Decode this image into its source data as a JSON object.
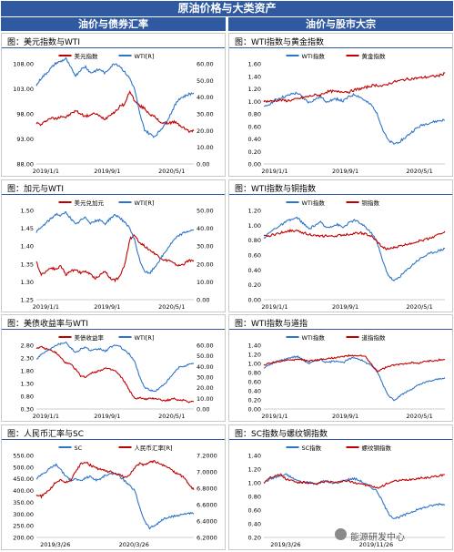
{
  "header": {
    "title": "原油价格与大类资产"
  },
  "sections": {
    "left": "油价与债券汇率",
    "right": "油价与股市大宗"
  },
  "colors": {
    "header_bg": "#2f5aa1",
    "series_red": "#c00000",
    "series_blue": "#2e75c8"
  },
  "watermark": "能源研发中心",
  "panels": [
    {
      "title": "图：美元指数与WTI"
    },
    {
      "title": "图：WTI指数与黄金指数"
    },
    {
      "title": "图：加元与WTI"
    },
    {
      "title": "图：WTI指数与铜指数"
    },
    {
      "title": "图：美债收益率与WTI"
    },
    {
      "title": "图：WTI指数与道指"
    },
    {
      "title": "图：人民币汇率与SC"
    },
    {
      "title": "图：SC指数与螺纹钢指数"
    }
  ],
  "chart_data": [
    {
      "type": "line",
      "title": "图：美元指数与WTI",
      "x_ticks": [
        "2019/1/1",
        "2019/9/1",
        "2020/5/1"
      ],
      "y_left": {
        "ticks": [
          "108.00",
          "103.00",
          "98.00",
          "93.00",
          "88.00"
        ],
        "range": [
          88,
          108
        ]
      },
      "y_right": {
        "ticks": [
          "60.00",
          "50.00",
          "40.00",
          "30.00",
          "20.00",
          "10.00",
          "0.00"
        ],
        "range": [
          0,
          60
        ]
      },
      "series": [
        {
          "name": "美元指数",
          "axis": "left",
          "color": "#c00000",
          "values": [
            96.2,
            95.8,
            96.7,
            97.2,
            97.0,
            97.6,
            97.3,
            98.0,
            98.6,
            98.0,
            97.5,
            97.8,
            98.1,
            97.4,
            97.0,
            97.9,
            98.4,
            99.5,
            100.0,
            102.6,
            100.5,
            99.6,
            99.1,
            98.0,
            97.4,
            96.5,
            96.1,
            96.2,
            96.4,
            95.8,
            95.2,
            94.5,
            94.6
          ]
        },
        {
          "name": "WTI[R]",
          "axis": "right",
          "color": "#2e75c8",
          "values": [
            47.0,
            51.5,
            54.2,
            57.5,
            60.4,
            61.5,
            63.0,
            57.5,
            53.0,
            56.5,
            58.4,
            54.5,
            55.8,
            56.6,
            54.2,
            58.0,
            60.3,
            58.6,
            54.8,
            51.2,
            44.5,
            30.1,
            20.5,
            18.0,
            16.5,
            19.5,
            23.5,
            28.3,
            34.2,
            39.1,
            40.4,
            41.8,
            42.5
          ]
        }
      ]
    },
    {
      "type": "line",
      "title": "图：WTI指数与黄金指数",
      "x_ticks": [
        "2019/1/1",
        "2019/9/1",
        "2020/5/1"
      ],
      "y_left": {
        "ticks": [
          "1.60",
          "1.40",
          "1.20",
          "1.00",
          "0.80",
          "0.60",
          "0.40",
          "0.20",
          "0.00"
        ],
        "range": [
          0,
          1.6
        ]
      },
      "series": [
        {
          "name": "WTI指数",
          "color": "#2e75c8",
          "values": [
            0.9,
            0.96,
            1.02,
            1.06,
            1.08,
            1.12,
            1.13,
            1.05,
            0.98,
            1.03,
            1.07,
            1.0,
            1.02,
            1.04,
            1.0,
            1.07,
            1.11,
            1.07,
            1.0,
            0.94,
            0.82,
            0.55,
            0.37,
            0.32,
            0.36,
            0.42,
            0.5,
            0.57,
            0.62,
            0.65,
            0.67,
            0.69,
            0.7
          ]
        },
        {
          "name": "黄金指数",
          "color": "#c00000",
          "values": [
            1.0,
            1.0,
            1.01,
            1.02,
            1.01,
            1.02,
            1.04,
            1.06,
            1.08,
            1.1,
            1.1,
            1.15,
            1.16,
            1.15,
            1.16,
            1.15,
            1.18,
            1.2,
            1.22,
            1.25,
            1.26,
            1.24,
            1.28,
            1.31,
            1.33,
            1.35,
            1.36,
            1.37,
            1.38,
            1.39,
            1.4,
            1.41,
            1.45
          ]
        }
      ]
    },
    {
      "type": "line",
      "title": "图：加元与WTI",
      "x_ticks": [
        "2019/1/1",
        "2019/9/1",
        "2020/5/1"
      ],
      "y_left": {
        "ticks": [
          "1.50",
          "1.45",
          "1.40",
          "1.35",
          "1.30",
          "1.25"
        ],
        "range": [
          1.25,
          1.5
        ]
      },
      "y_right": {
        "ticks": [
          "50.00",
          "40.00",
          "30.00",
          "20.00",
          "10.00",
          "0.00"
        ],
        "range": [
          0,
          50
        ]
      },
      "series": [
        {
          "name": "美元兑加元",
          "axis": "left",
          "color": "#c00000",
          "values": [
            1.355,
            1.32,
            1.33,
            1.34,
            1.335,
            1.345,
            1.32,
            1.33,
            1.335,
            1.325,
            1.33,
            1.32,
            1.31,
            1.32,
            1.33,
            1.31,
            1.305,
            1.315,
            1.35,
            1.42,
            1.43,
            1.41,
            1.4,
            1.39,
            1.38,
            1.37,
            1.36,
            1.36,
            1.35,
            1.345,
            1.35,
            1.36,
            1.36
          ]
        },
        {
          "name": "WTI[R]",
          "axis": "right",
          "color": "#2e75c8",
          "values": [
            38.0,
            40.5,
            43.0,
            45.5,
            48.0,
            47.0,
            49.0,
            45.5,
            42.0,
            44.5,
            46.0,
            43.0,
            44.0,
            44.5,
            42.5,
            45.5,
            47.5,
            46.0,
            43.0,
            40.0,
            33.0,
            22.0,
            16.0,
            14.5,
            18.0,
            22.0,
            26.0,
            30.0,
            33.5,
            36.0,
            37.5,
            38.5,
            39.0
          ]
        }
      ]
    },
    {
      "type": "line",
      "title": "图：WTI指数与铜指数",
      "x_ticks": [
        "2019/1/1",
        "2019/9/1",
        "2020/5/1"
      ],
      "y_left": {
        "ticks": [
          "1.20",
          "1.00",
          "0.80",
          "0.60",
          "0.40",
          "0.20",
          "0.00"
        ],
        "range": [
          0,
          1.2
        ]
      },
      "series": [
        {
          "name": "WTI指数",
          "color": "#2e75c8",
          "values": [
            0.83,
            0.9,
            0.96,
            1.0,
            1.05,
            1.08,
            1.1,
            1.02,
            0.95,
            1.0,
            1.04,
            0.97,
            0.99,
            1.01,
            0.97,
            1.03,
            1.07,
            1.03,
            0.97,
            0.9,
            0.78,
            0.52,
            0.33,
            0.25,
            0.31,
            0.38,
            0.45,
            0.52,
            0.57,
            0.61,
            0.64,
            0.66,
            0.69
          ]
        },
        {
          "name": "铜指数",
          "color": "#c00000",
          "values": [
            0.85,
            0.86,
            0.88,
            0.9,
            0.92,
            0.93,
            0.92,
            0.9,
            0.88,
            0.86,
            0.85,
            0.86,
            0.85,
            0.86,
            0.87,
            0.88,
            0.89,
            0.9,
            0.88,
            0.85,
            0.78,
            0.7,
            0.68,
            0.7,
            0.72,
            0.74,
            0.76,
            0.78,
            0.8,
            0.82,
            0.85,
            0.88,
            0.92
          ]
        }
      ]
    },
    {
      "type": "line",
      "title": "图：美债收益率与WTI",
      "x_ticks": [
        "2019/1/1",
        "2019/9/1",
        "2020/5/1"
      ],
      "y_left": {
        "ticks": [
          "2.80",
          "2.30",
          "1.80",
          "1.30",
          "0.80",
          "0.30"
        ],
        "range": [
          0.3,
          2.8
        ]
      },
      "y_right": {
        "ticks": [
          "60.00",
          "50.00",
          "40.00",
          "30.00",
          "20.00",
          "10.00",
          "0.00"
        ],
        "range": [
          0,
          60
        ]
      },
      "series": [
        {
          "name": "美债收益率",
          "axis": "left",
          "color": "#c00000",
          "values": [
            2.7,
            2.72,
            2.65,
            2.6,
            2.5,
            2.3,
            2.1,
            2.05,
            1.85,
            1.6,
            1.55,
            1.7,
            1.75,
            1.82,
            1.9,
            1.85,
            1.8,
            1.6,
            1.35,
            1.0,
            0.7,
            0.75,
            0.68,
            0.7,
            0.72,
            0.68,
            0.62,
            0.66,
            0.7,
            0.64,
            0.66,
            0.58,
            0.6
          ]
        },
        {
          "name": "WTI[R]",
          "axis": "right",
          "color": "#2e75c8",
          "values": [
            47.0,
            51.5,
            54.2,
            57.5,
            60.4,
            61.5,
            63.0,
            57.5,
            53.0,
            56.5,
            58.4,
            54.5,
            55.8,
            56.6,
            54.2,
            58.0,
            60.3,
            58.6,
            54.8,
            51.2,
            44.5,
            30.1,
            20.5,
            18.0,
            16.5,
            19.5,
            23.5,
            28.3,
            34.2,
            39.1,
            40.4,
            41.8,
            42.5
          ]
        }
      ]
    },
    {
      "type": "line",
      "title": "图：WTI指数与道指",
      "x_ticks": [
        "2019/1/1",
        "2019/9/1",
        "2020/5/1"
      ],
      "y_left": {
        "ticks": [
          "1.40",
          "1.20",
          "1.00",
          "0.80",
          "0.60",
          "0.40",
          "0.20",
          "0.00"
        ],
        "range": [
          0,
          1.4
        ]
      },
      "series": [
        {
          "name": "WTI指数",
          "color": "#2e75c8",
          "values": [
            0.9,
            0.97,
            1.03,
            1.07,
            1.1,
            1.14,
            1.15,
            1.07,
            1.0,
            1.05,
            1.09,
            1.02,
            1.04,
            1.06,
            1.02,
            1.09,
            1.13,
            1.09,
            1.02,
            0.96,
            0.84,
            0.55,
            0.3,
            0.2,
            0.28,
            0.36,
            0.43,
            0.5,
            0.56,
            0.6,
            0.63,
            0.66,
            0.69
          ]
        },
        {
          "name": "道指指数",
          "color": "#c00000",
          "values": [
            0.97,
            1.0,
            1.03,
            1.05,
            1.08,
            1.06,
            1.1,
            1.08,
            1.05,
            1.07,
            1.09,
            1.1,
            1.12,
            1.13,
            1.15,
            1.17,
            1.16,
            1.18,
            1.14,
            0.98,
            0.82,
            0.88,
            0.93,
            0.96,
            0.98,
            1.0,
            1.02,
            1.0,
            1.03,
            1.05,
            1.06,
            1.08,
            1.09
          ]
        }
      ]
    },
    {
      "type": "line",
      "title": "图：人民币汇率与SC",
      "x_ticks": [
        "2019/3/26",
        "2020/3/26"
      ],
      "y_left": {
        "ticks": [
          "550.00",
          "500.00",
          "450.00",
          "400.00",
          "350.00",
          "300.00",
          "250.00",
          "200.00"
        ],
        "range": [
          200,
          550
        ]
      },
      "y_right": {
        "ticks": [
          "7.2000",
          "7.0000",
          "6.8000",
          "6.6000",
          "6.4000",
          "6.2000"
        ],
        "range": [
          6.2,
          7.2
        ]
      },
      "series": [
        {
          "name": "SC",
          "axis": "left",
          "color": "#2e75c8",
          "values": [
            450,
            470,
            480,
            500,
            510,
            490,
            460,
            445,
            450,
            440,
            455,
            460,
            445,
            450,
            465,
            470,
            475,
            460,
            440,
            420,
            400,
            330,
            270,
            240,
            250,
            265,
            280,
            285,
            290,
            295,
            300,
            305,
            300
          ]
        },
        {
          "name": "人民币汇率[R]",
          "axis": "right",
          "color": "#c00000",
          "values": [
            6.72,
            6.7,
            6.75,
            6.8,
            6.88,
            6.9,
            6.87,
            6.9,
            7.0,
            7.1,
            7.12,
            7.08,
            7.05,
            7.03,
            7.01,
            7.0,
            6.98,
            6.96,
            6.93,
            6.97,
            7.05,
            7.1,
            7.08,
            7.12,
            7.13,
            7.1,
            7.07,
            7.05,
            7.0,
            6.97,
            6.93,
            6.85,
            6.78
          ]
        }
      ]
    },
    {
      "type": "line",
      "title": "图：SC指数与螺纹钢指数",
      "x_ticks": [
        "2019/3/26",
        "2019/11/26"
      ],
      "y_left": {
        "ticks": [
          "1.40",
          "1.20",
          "1.00",
          "0.80",
          "0.60",
          "0.40",
          "0.20"
        ],
        "range": [
          0.2,
          1.4
        ]
      },
      "series": [
        {
          "name": "SC指数",
          "color": "#2e75c8",
          "values": [
            1.0,
            1.05,
            1.08,
            1.1,
            1.12,
            1.07,
            1.03,
            1.0,
            1.02,
            0.98,
            1.01,
            1.03,
            0.99,
            1.0,
            1.03,
            1.05,
            1.06,
            1.03,
            0.98,
            0.93,
            0.88,
            0.72,
            0.55,
            0.48,
            0.5,
            0.53,
            0.57,
            0.6,
            0.63,
            0.65,
            0.67,
            0.69,
            0.68
          ]
        },
        {
          "name": "螺纹钢指数",
          "color": "#c00000",
          "values": [
            1.0,
            1.08,
            1.1,
            1.12,
            1.05,
            1.03,
            1.0,
            1.01,
            0.99,
            0.98,
            1.0,
            1.02,
            1.01,
            1.0,
            1.03,
            1.02,
            1.0,
            0.99,
            0.97,
            0.95,
            0.92,
            0.95,
            1.0,
            1.02,
            1.03,
            1.04,
            1.05,
            1.06,
            1.07,
            1.08,
            1.09,
            1.1,
            1.12
          ]
        }
      ]
    }
  ]
}
